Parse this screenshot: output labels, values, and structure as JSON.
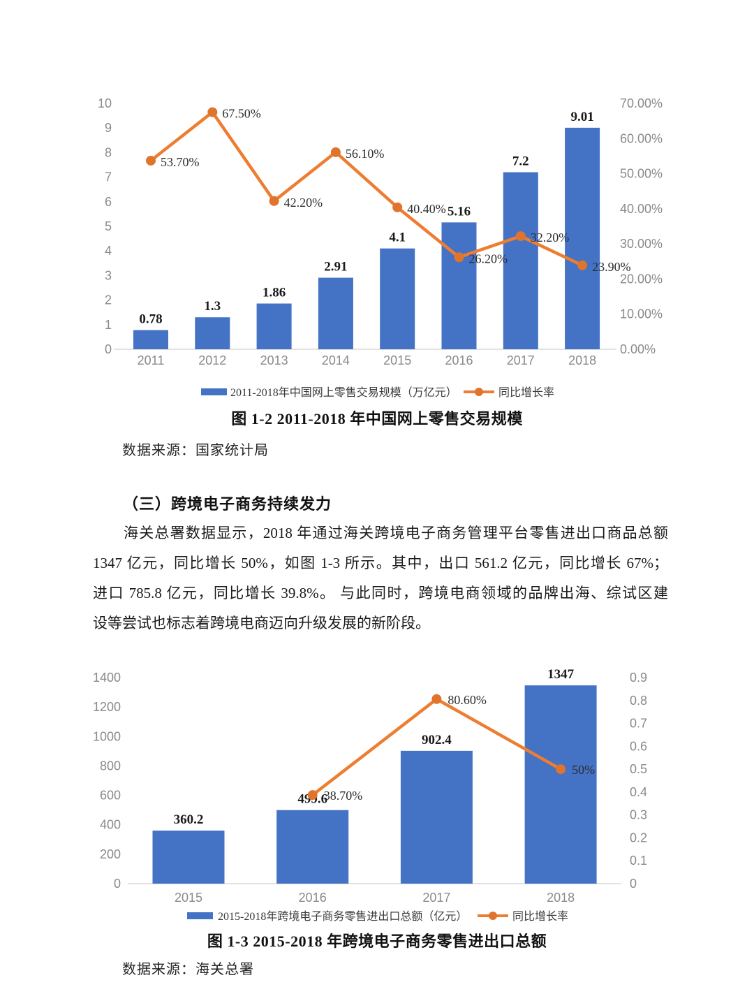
{
  "page": {
    "section_heading": "（三）跨境电子商务持续发力",
    "paragraph_lines": [
      "海关总署数据显示，2018 年通过海关跨境电子商务管理平台零售进出口商品总额",
      "1347 亿元，同比增长 50%，如图 1-3 所示。其中，出口 561.2 亿元，同比增长 67%；",
      "进口 785.8 亿元，同比增长 39.8%。 与此同时，跨境电商领域的品牌出海、综试区建",
      "设等尝试也标志着跨境电商迈向升级发展的新阶段。"
    ]
  },
  "colors": {
    "bar": "#4472C4",
    "line": "#ED7D31",
    "marker": "#E0742D",
    "axis_line": "#D9D9D9"
  },
  "chart_data": [
    {
      "type": "bar+line",
      "title": "图 1-2  2011-2018 年中国网上零售交易规模",
      "source": "数据来源：国家统计局",
      "categories": [
        "2011",
        "2012",
        "2013",
        "2014",
        "2015",
        "2016",
        "2017",
        "2018"
      ],
      "bar_series": {
        "name": "2011-2018年中国网上零售交易规模（万亿元）",
        "values": [
          0.78,
          1.3,
          1.86,
          2.91,
          4.1,
          5.16,
          7.2,
          9.01
        ],
        "labels": [
          "0.78",
          "1.3",
          "1.86",
          "2.91",
          "4.1",
          "5.16",
          "7.2",
          "9.01"
        ]
      },
      "line_series": {
        "name": "同比增长率",
        "values": [
          53.7,
          67.5,
          42.2,
          56.1,
          40.4,
          26.2,
          32.2,
          23.9
        ],
        "labels": [
          "53.70%",
          "67.50%",
          "42.20%",
          "56.10%",
          "40.40%",
          "26.20%",
          "32.20%",
          "23.90%"
        ]
      },
      "left_axis": {
        "min": 0,
        "max": 10,
        "ticks_top_to_bottom": [
          "10",
          "9",
          "8",
          "7",
          "6",
          "5",
          "4",
          "3",
          "2",
          "1",
          "0"
        ]
      },
      "right_axis": {
        "min": 0,
        "max": 70,
        "ticks_top_to_bottom": [
          "70.00%",
          "60.00%",
          "50.00%",
          "40.00%",
          "30.00%",
          "20.00%",
          "10.00%",
          "0.00%"
        ]
      },
      "grid": false,
      "legend_position": "bottom"
    },
    {
      "type": "bar+line",
      "title": "图 1-3  2015-2018 年跨境电子商务零售进出口总额",
      "source": "数据来源：海关总署",
      "categories": [
        "2015",
        "2016",
        "2017",
        "2018"
      ],
      "bar_series": {
        "name": "2015-2018年跨境电子商务零售进出口总额（亿元）",
        "values": [
          360.2,
          499.6,
          902.4,
          1347
        ],
        "labels": [
          "360.2",
          "499.6",
          "902.4",
          "1347"
        ]
      },
      "line_series": {
        "name": "同比增长率",
        "values": [
          null,
          0.387,
          0.806,
          0.5
        ],
        "labels": [
          null,
          "38.70%",
          "80.60%",
          "50%"
        ]
      },
      "left_axis": {
        "min": 0,
        "max": 1400,
        "ticks_top_to_bottom": [
          "1400",
          "1200",
          "1000",
          "800",
          "600",
          "400",
          "200",
          "0"
        ]
      },
      "right_axis": {
        "min": 0,
        "max": 0.9,
        "ticks_top_to_bottom": [
          "0.9",
          "0.8",
          "0.7",
          "0.6",
          "0.5",
          "0.4",
          "0.3",
          "0.2",
          "0.1",
          "0"
        ]
      },
      "grid": false,
      "legend_position": "bottom"
    }
  ]
}
